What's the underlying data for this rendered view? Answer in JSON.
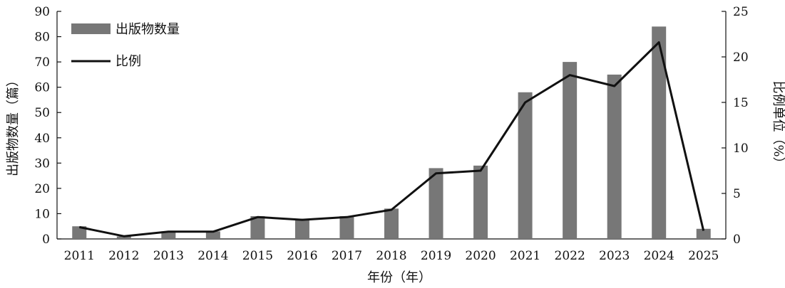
{
  "chart_data": {
    "type": "bar+line",
    "categories": [
      "2011",
      "2012",
      "2013",
      "2014",
      "2015",
      "2016",
      "2017",
      "2018",
      "2019",
      "2020",
      "2021",
      "2022",
      "2023",
      "2024",
      "2025"
    ],
    "series": [
      {
        "name": "出版物数量",
        "type": "bar",
        "axis": "left",
        "values": [
          5,
          1,
          3,
          3,
          9,
          8,
          9,
          12,
          28,
          29,
          58,
          70,
          65,
          84,
          4
        ]
      },
      {
        "name": "比例",
        "type": "line",
        "axis": "right",
        "values": [
          1.3,
          0.3,
          0.8,
          0.8,
          2.4,
          2.1,
          2.4,
          3.2,
          7.2,
          7.5,
          15.0,
          18.0,
          16.8,
          21.6,
          0.9
        ]
      }
    ],
    "xlabel": "年份（年）",
    "ylabel": "出版物数量（篇）",
    "y2label": "比例单位（%）",
    "ylim": [
      0,
      90
    ],
    "y2lim": [
      0,
      25
    ],
    "yticks": [
      "0",
      "10",
      "20",
      "30",
      "40",
      "50",
      "60",
      "70",
      "80",
      "90"
    ],
    "y2ticks": [
      "0",
      "5",
      "10",
      "15",
      "20",
      "25"
    ],
    "legend": [
      "出版物数量",
      "比例"
    ],
    "legend_position": "top-left",
    "grid": false,
    "colors": {
      "bar": "#777777",
      "line": "#111111",
      "axis": "#111111"
    }
  }
}
